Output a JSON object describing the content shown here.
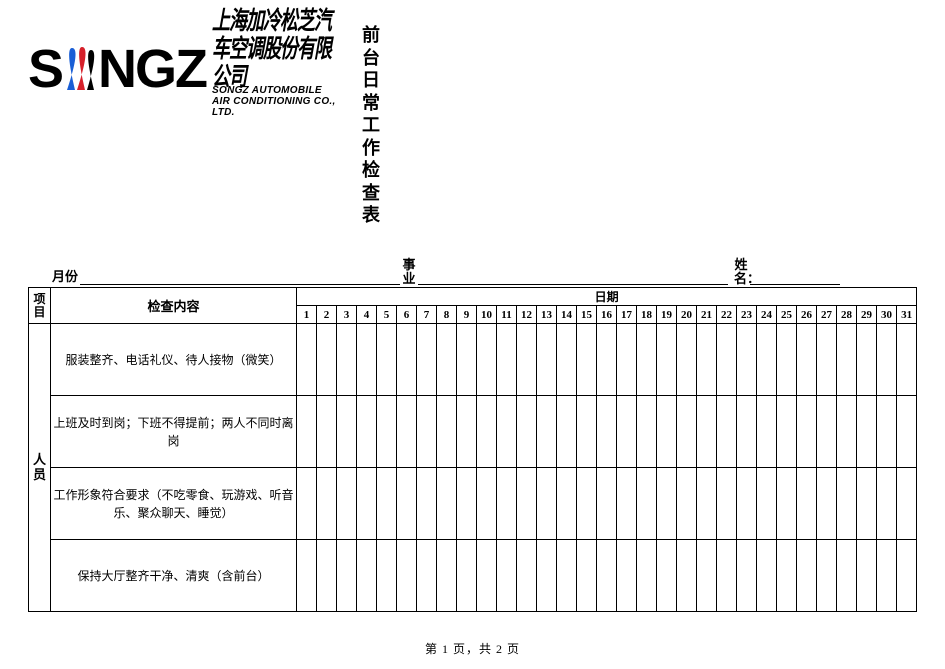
{
  "logo": {
    "wordmark_left": "S",
    "wordmark_right": "NGZ",
    "cn": "上海加冷松芝汽车空调股份有限公司",
    "en": "SONGZ AUTOMOBILE AIR CONDITIONING CO., LTD.",
    "colors": {
      "black": "#000000",
      "blue": "#1a5fd6",
      "red": "#d6202a"
    }
  },
  "title": "前台日常工作检查表",
  "meta": {
    "month_label": "月份",
    "biz_label": "事业",
    "name_label": "姓名：",
    "month_value": "",
    "biz_value": "",
    "name_value": ""
  },
  "table": {
    "project_header": "项目",
    "content_header": "检查内容",
    "date_header": "日期",
    "days": [
      "1",
      "2",
      "3",
      "4",
      "5",
      "6",
      "7",
      "8",
      "9",
      "10",
      "11",
      "12",
      "13",
      "14",
      "15",
      "16",
      "17",
      "18",
      "19",
      "20",
      "21",
      "22",
      "23",
      "24",
      "25",
      "26",
      "27",
      "28",
      "29",
      "30",
      "31"
    ],
    "category": "人员",
    "items": [
      "服装整齐、电话礼仪、待人接物（微笑）",
      "上班及时到岗；下班不得提前；两人不同时离岗",
      "工作形象符合要求（不吃零食、玩游戏、听音乐、聚众聊天、睡觉）",
      "保持大厅整齐干净、清爽（含前台）"
    ]
  },
  "footer": "第 1 页，共 2 页"
}
